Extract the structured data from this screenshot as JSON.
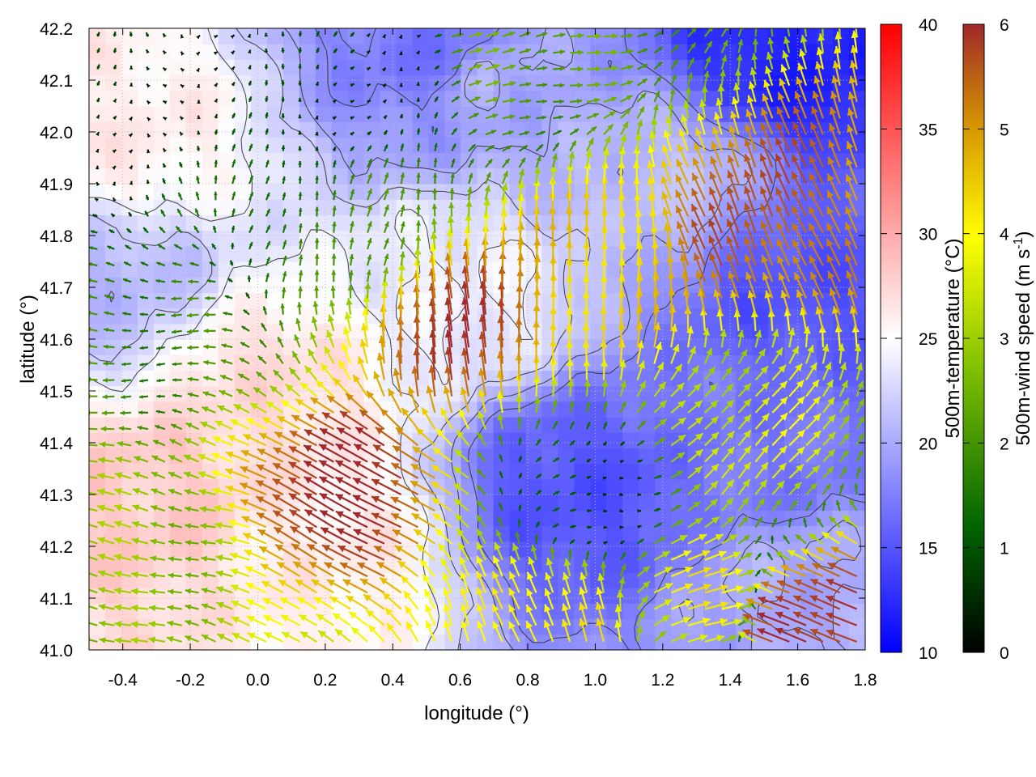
{
  "chart_data": {
    "type": "heatmap",
    "subtype": "wind vector field over temperature map with contour lines",
    "xlabel": "longitude (°)",
    "ylabel": "latitude (°)",
    "xlim": [
      -0.5,
      1.8
    ],
    "ylim": [
      41.0,
      42.2
    ],
    "x_ticks": [
      -0.4,
      -0.2,
      0.0,
      0.2,
      0.4,
      0.6,
      0.8,
      1.0,
      1.2,
      1.4,
      1.6,
      1.8
    ],
    "x_tick_labels": [
      "-0.4",
      "-0.2",
      "0.0",
      "0.2",
      "0.4",
      "0.6",
      "0.8",
      "1.0",
      "1.2",
      "1.4",
      "1.6",
      "1.8"
    ],
    "y_ticks": [
      41.0,
      41.1,
      41.2,
      41.3,
      41.4,
      41.5,
      41.6,
      41.7,
      41.8,
      41.9,
      42.0,
      42.1,
      42.2
    ],
    "y_tick_labels": [
      "41.0",
      "41.1",
      "41.2",
      "41.3",
      "41.4",
      "41.5",
      "41.6",
      "41.7",
      "41.8",
      "41.9",
      "42.0",
      "42.1",
      "42.2"
    ],
    "grid": true,
    "temperature_colorbar": {
      "label": "500m-temperature (°C)",
      "range": [
        10,
        40
      ],
      "ticks": [
        10,
        15,
        20,
        25,
        30,
        35,
        40
      ],
      "tick_labels": [
        "10",
        "15",
        "20",
        "25",
        "30",
        "35",
        "40"
      ],
      "colors": [
        "#0000ff",
        "#ffffff",
        "#ff0000"
      ]
    },
    "wind_colorbar": {
      "label_main": "500m-wind speed (m s",
      "label_sup": "-1",
      "label_end": ")",
      "range": [
        0,
        6
      ],
      "ticks": [
        0,
        1,
        2,
        3,
        4,
        5,
        6
      ],
      "tick_labels": [
        "0",
        "1",
        "2",
        "3",
        "4",
        "5",
        "6"
      ],
      "colors": [
        "#000000",
        "#006400",
        "#7fbf00",
        "#ffff00",
        "#d89a00",
        "#a0282a"
      ]
    },
    "temperature_regions": [
      {
        "lon": -0.4,
        "lat": 42.0,
        "temp": 26
      },
      {
        "lon": 0.0,
        "lat": 41.5,
        "temp": 27
      },
      {
        "lon": -0.3,
        "lat": 41.3,
        "temp": 28
      },
      {
        "lon": 0.2,
        "lat": 41.2,
        "temp": 26
      },
      {
        "lon": 0.6,
        "lat": 41.7,
        "temp": 24
      },
      {
        "lon": 0.7,
        "lat": 42.1,
        "temp": 20
      },
      {
        "lon": 0.55,
        "lat": 42.15,
        "temp": 17
      },
      {
        "lon": 0.95,
        "lat": 41.3,
        "temp": 15
      },
      {
        "lon": 1.6,
        "lat": 42.15,
        "temp": 12
      },
      {
        "lon": 1.6,
        "lat": 41.7,
        "temp": 15
      },
      {
        "lon": 1.5,
        "lat": 41.4,
        "temp": 17
      },
      {
        "lon": 1.6,
        "lat": 41.1,
        "temp": 20
      },
      {
        "lon": 1.2,
        "lat": 41.9,
        "temp": 21
      },
      {
        "lon": -0.45,
        "lat": 41.7,
        "temp": 21
      }
    ],
    "wind_regions": [
      {
        "lon": -0.3,
        "lat": 42.1,
        "u": 0.0,
        "v": 0.5
      },
      {
        "lon": 0.3,
        "lat": 42.1,
        "u": 0.3,
        "v": 0.6
      },
      {
        "lon": 0.8,
        "lat": 42.15,
        "u": 2.3,
        "v": 0.4
      },
      {
        "lon": -0.3,
        "lat": 41.6,
        "u": -1.8,
        "v": 0.1
      },
      {
        "lon": -0.3,
        "lat": 41.2,
        "u": -2.7,
        "v": 0.6
      },
      {
        "lon": 0.3,
        "lat": 41.3,
        "u": -5.3,
        "v": 2.8
      },
      {
        "lon": 0.6,
        "lat": 41.6,
        "u": -0.5,
        "v": 5.6
      },
      {
        "lon": 0.2,
        "lat": 41.8,
        "u": 0.4,
        "v": 1.7
      },
      {
        "lon": 1.0,
        "lat": 41.7,
        "u": 0.2,
        "v": 4.5
      },
      {
        "lon": 1.5,
        "lat": 41.8,
        "u": -2.2,
        "v": 5.0
      },
      {
        "lon": 1.4,
        "lat": 41.4,
        "u": 2.5,
        "v": 2.5
      },
      {
        "lon": 1.0,
        "lat": 41.3,
        "u": 0.8,
        "v": 0.2
      },
      {
        "lon": 1.3,
        "lat": 41.1,
        "u": 3.8,
        "v": 1.2
      },
      {
        "lon": 1.65,
        "lat": 41.05,
        "u": -5.6,
        "v": 2.0
      },
      {
        "lon": 0.9,
        "lat": 41.05,
        "u": -1.5,
        "v": 4.0
      }
    ],
    "contour_levels": [
      18,
      20,
      22,
      24
    ]
  }
}
